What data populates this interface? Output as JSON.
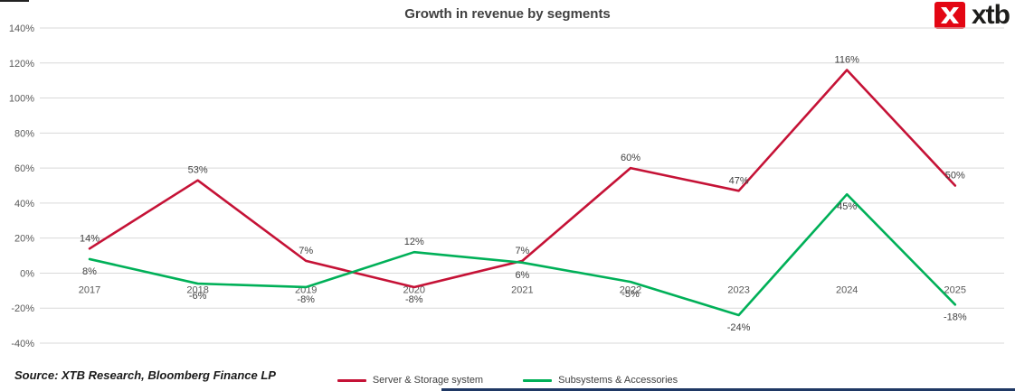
{
  "header": {
    "title": "Growth in revenue by segments"
  },
  "logo": {
    "text": "xtb",
    "accent_color": "#e30613"
  },
  "source": "Source: XTB Research, Bloomberg Finance LP",
  "chart_data": {
    "type": "line",
    "title": "Growth in revenue by segments",
    "categories": [
      "2017",
      "2018",
      "2019",
      "2020",
      "2021",
      "2022",
      "2023",
      "2024",
      "2025"
    ],
    "series": [
      {
        "name": "Server & Storage system",
        "color": "#c51236",
        "values": [
          14,
          53,
          7,
          -8,
          7,
          60,
          47,
          116,
          50
        ]
      },
      {
        "name": "Subsystems & Accessories",
        "color": "#00b058",
        "values": [
          8,
          -6,
          -8,
          12,
          6,
          -5,
          -24,
          45,
          -18
        ]
      }
    ],
    "xlabel": "",
    "ylabel": "",
    "ylim": [
      -40,
      140
    ],
    "ytick_step": 20,
    "ytick_format": "percent",
    "grid": true,
    "gridline_color": "#d9d9d9",
    "legend_position": "bottom",
    "data_labels": true
  }
}
